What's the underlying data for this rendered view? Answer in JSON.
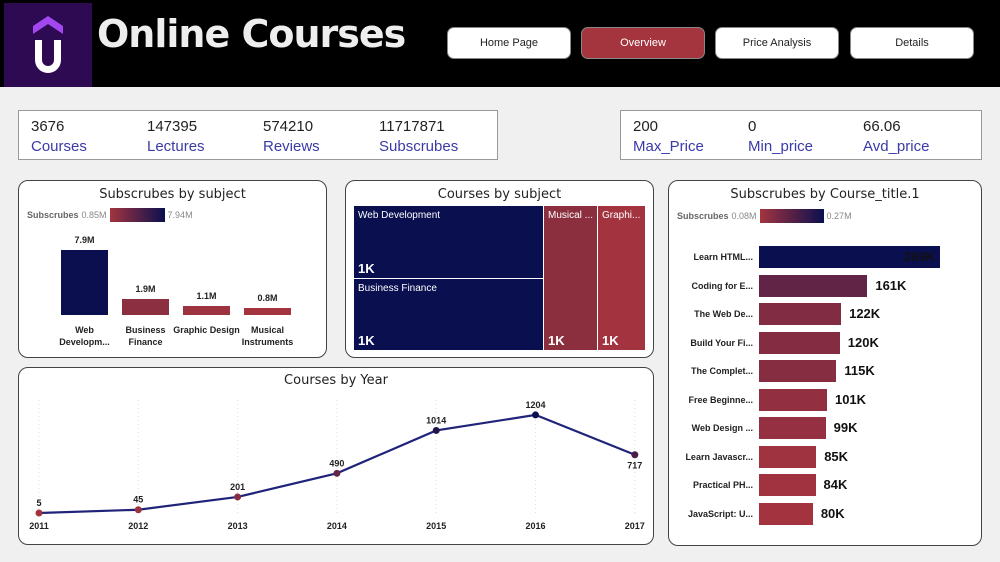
{
  "header": {
    "title": "Online Courses",
    "logo_letter": "U",
    "nav": [
      {
        "label": "Home Page",
        "active": false
      },
      {
        "label": "Overview",
        "active": true
      },
      {
        "label": "Price Analysis",
        "active": false
      },
      {
        "label": "Details",
        "active": false
      }
    ]
  },
  "kpis_left": [
    {
      "value": "3676",
      "label": "Courses"
    },
    {
      "value": "147395",
      "label": "Lectures"
    },
    {
      "value": "574210",
      "label": "Reviews"
    },
    {
      "value": "11717871",
      "label": "Subscrubes"
    }
  ],
  "kpis_right": [
    {
      "value": "200",
      "label": "Max_Price"
    },
    {
      "value": "0",
      "label": "Min_price"
    },
    {
      "value": "66.06",
      "label": "Avd_price"
    }
  ],
  "colors": {
    "accent": "#a4343d",
    "navy": "#0a0f4f",
    "logo_bg": "#2d0a52"
  },
  "chart_data": [
    {
      "type": "bar",
      "title": "Subscrubes by subject",
      "legend": {
        "label": "Subscrubes",
        "min": "0.85M",
        "max": "7.94M"
      },
      "categories": [
        "Web Developm...",
        "Business Finance",
        "Graphic Design",
        "Musical Instruments"
      ],
      "values": [
        7.9,
        1.9,
        1.1,
        0.8
      ],
      "labels": [
        "7.9M",
        "1.9M",
        "1.1M",
        "0.8M"
      ]
    },
    {
      "type": "treemap",
      "title": "Courses by subject",
      "items": [
        {
          "name": "Web Development",
          "label": "1K"
        },
        {
          "name": "Business Finance",
          "label": "1K"
        },
        {
          "name": "Musical ...",
          "label": "1K"
        },
        {
          "name": "Graphi...",
          "label": "1K"
        }
      ]
    },
    {
      "type": "bar",
      "orientation": "horizontal",
      "title": "Subscrubes by Course_title.1",
      "legend": {
        "label": "Subscrubes",
        "min": "0.08M",
        "max": "0.27M"
      },
      "categories": [
        "Learn HTML...",
        "Coding for E...",
        "The Web De...",
        "Build Your Fi...",
        "The Complet...",
        "Free Beginne...",
        "Web Design ...",
        "Learn Javascr...",
        "Practical PH...",
        "JavaScript: U..."
      ],
      "values": [
        269,
        161,
        122,
        120,
        115,
        101,
        99,
        85,
        84,
        80
      ],
      "labels": [
        "269K",
        "161K",
        "122K",
        "120K",
        "115K",
        "101K",
        "99K",
        "85K",
        "84K",
        "80K"
      ]
    },
    {
      "type": "line",
      "title": "Courses by Year",
      "x": [
        "2011",
        "2012",
        "2013",
        "2014",
        "2015",
        "2016",
        "2017"
      ],
      "values": [
        5,
        45,
        201,
        490,
        1014,
        1204,
        717
      ]
    }
  ]
}
